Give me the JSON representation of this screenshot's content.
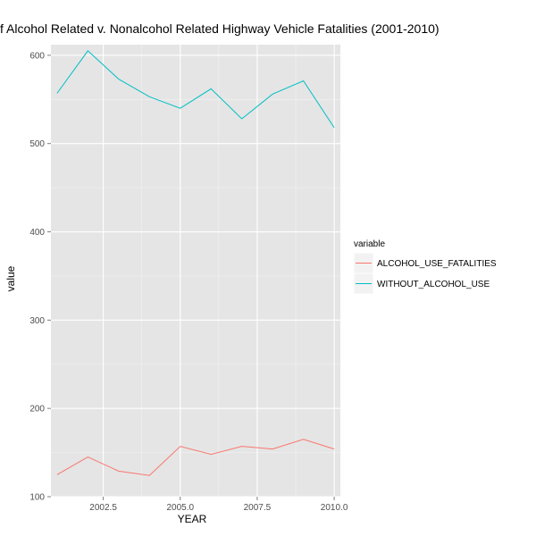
{
  "chart_data": {
    "type": "line",
    "title": "f Alcohol Related v. Nonalcohol Related Highway Vehicle Fatalities (2001-2010)",
    "xlabel": "YEAR",
    "ylabel": "value",
    "xlim": [
      2000.8,
      2010.2
    ],
    "ylim": [
      100,
      612
    ],
    "x_ticks": [
      2002.5,
      2005.0,
      2007.5,
      2010.0
    ],
    "x_tick_labels": [
      "2002.5",
      "2005.0",
      "2007.5",
      "2010.0"
    ],
    "y_ticks": [
      100,
      200,
      300,
      400,
      500,
      600
    ],
    "y_tick_labels": [
      "100",
      "200",
      "300",
      "400",
      "500",
      "600"
    ],
    "grid": true,
    "legend_title": "variable",
    "legend_position": "right",
    "x": [
      2001,
      2002,
      2003,
      2004,
      2005,
      2006,
      2007,
      2008,
      2009,
      2010
    ],
    "series": [
      {
        "name": "ALCOHOL_USE_FATALITIES",
        "color": "#f8766d",
        "values": [
          125,
          145,
          129,
          124,
          157,
          148,
          157,
          154,
          165,
          154
        ]
      },
      {
        "name": "WITHOUT_ALCOHOL_USE",
        "color": "#00bfc4",
        "values": [
          557,
          605,
          573,
          553,
          540,
          562,
          528,
          556,
          571,
          518
        ]
      }
    ],
    "panel_background": "#e5e5e5",
    "grid_color": "#ffffff"
  }
}
